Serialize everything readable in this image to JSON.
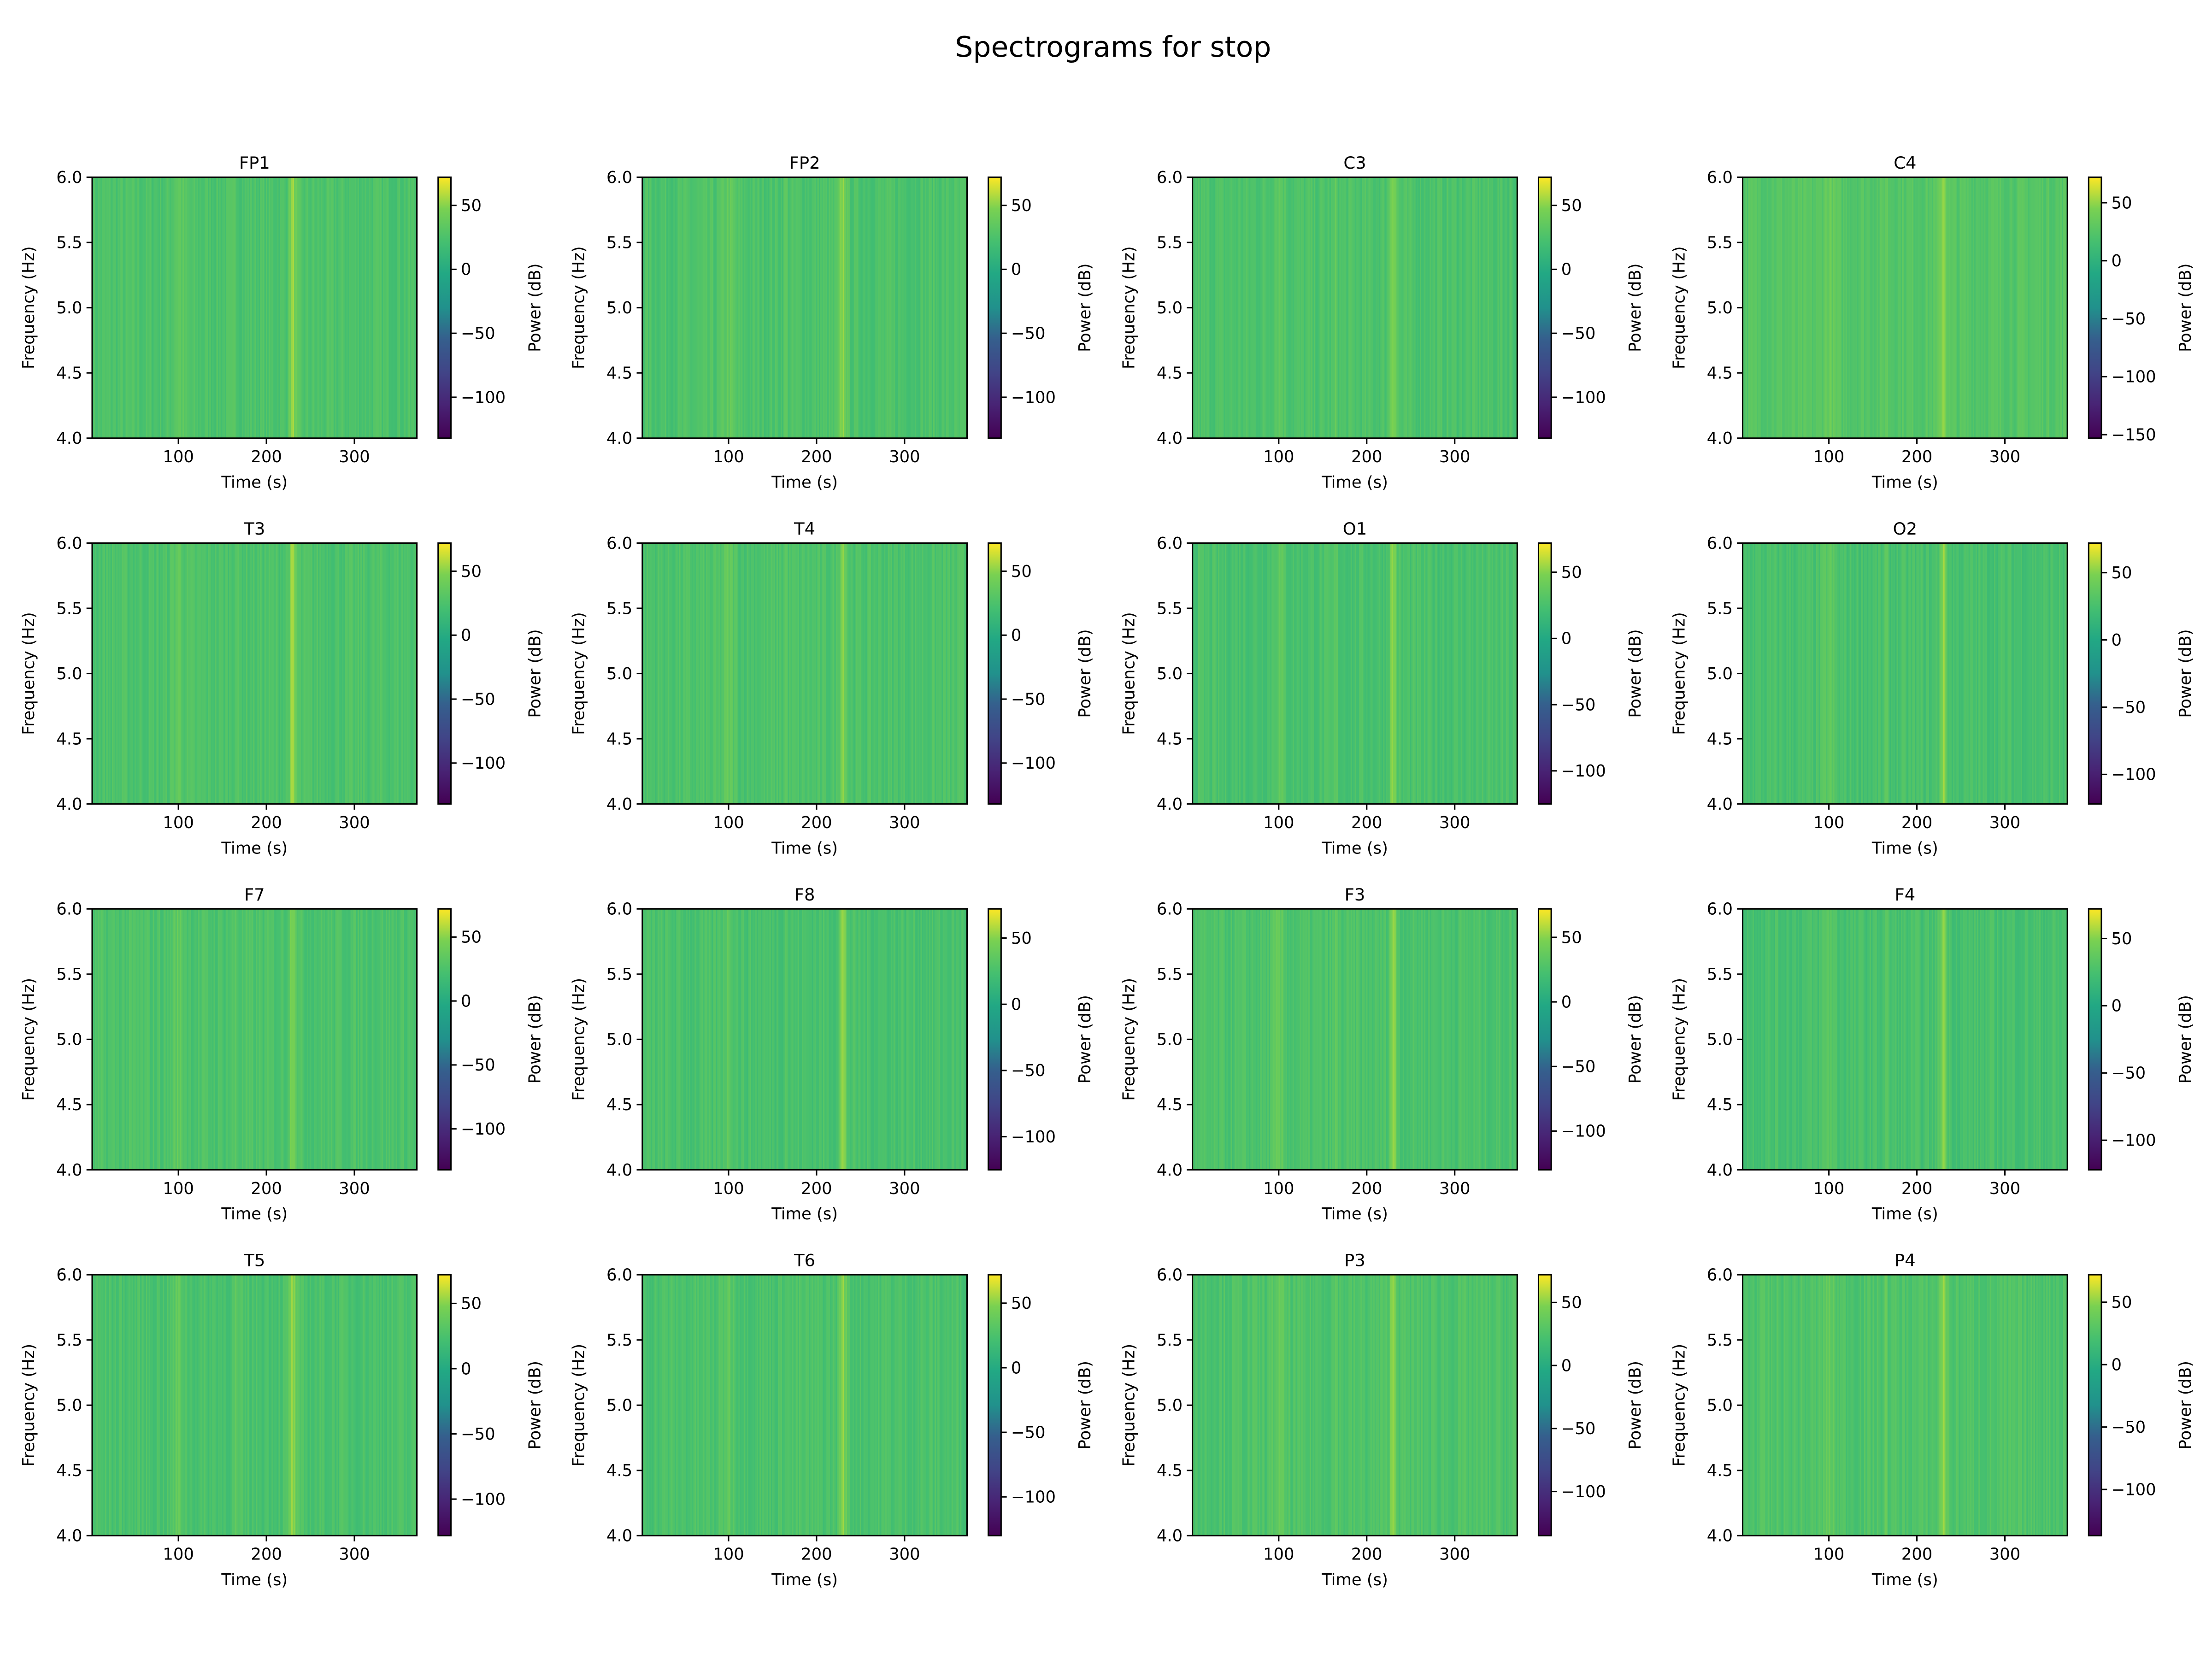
{
  "title": "Spectrograms for stop",
  "chart_data": {
    "type": "heatmap",
    "colormap": "viridis",
    "grid": false,
    "xlabel": "Time (s)",
    "ylabel": "Frequency (Hz)",
    "colorbar_label": "Power (dB)",
    "xlim": [
      2,
      371
    ],
    "ylim": [
      4.0,
      6.0
    ],
    "xticks": [
      100,
      200,
      300
    ],
    "yticks": [
      "4.0",
      "4.5",
      "5.0",
      "5.5",
      "6.0"
    ],
    "highlight_times": [
      100,
      165,
      230
    ],
    "panels": [
      {
        "channel": "FP1",
        "clim": [
          -132,
          72
        ],
        "cticks": [
          50,
          0,
          -50,
          -100
        ]
      },
      {
        "channel": "FP2",
        "clim": [
          -132,
          72
        ],
        "cticks": [
          50,
          0,
          -50,
          -100
        ]
      },
      {
        "channel": "C3",
        "clim": [
          -132,
          72
        ],
        "cticks": [
          50,
          0,
          -50,
          -100
        ]
      },
      {
        "channel": "C4",
        "clim": [
          -153,
          72
        ],
        "cticks": [
          50,
          0,
          -50,
          -100,
          -150
        ]
      },
      {
        "channel": "T3",
        "clim": [
          -132,
          72
        ],
        "cticks": [
          50,
          0,
          -50,
          -100
        ]
      },
      {
        "channel": "T4",
        "clim": [
          -132,
          72
        ],
        "cticks": [
          50,
          0,
          -50,
          -100
        ]
      },
      {
        "channel": "O1",
        "clim": [
          -125,
          72
        ],
        "cticks": [
          50,
          0,
          -50,
          -100
        ]
      },
      {
        "channel": "O2",
        "clim": [
          -122,
          72
        ],
        "cticks": [
          50,
          0,
          -50,
          -100
        ]
      },
      {
        "channel": "F7",
        "clim": [
          -132,
          72
        ],
        "cticks": [
          50,
          0,
          -50,
          -100
        ]
      },
      {
        "channel": "F8",
        "clim": [
          -125,
          72
        ],
        "cticks": [
          50,
          0,
          -50,
          -100
        ]
      },
      {
        "channel": "F3",
        "clim": [
          -130,
          72
        ],
        "cticks": [
          50,
          0,
          -50,
          -100
        ]
      },
      {
        "channel": "F4",
        "clim": [
          -122,
          72
        ],
        "cticks": [
          50,
          0,
          -50,
          -100
        ]
      },
      {
        "channel": "T5",
        "clim": [
          -128,
          72
        ],
        "cticks": [
          50,
          0,
          -50,
          -100
        ]
      },
      {
        "channel": "T6",
        "clim": [
          -130,
          72
        ],
        "cticks": [
          50,
          0,
          -50,
          -100
        ]
      },
      {
        "channel": "P3",
        "clim": [
          -135,
          72
        ],
        "cticks": [
          50,
          0,
          -50,
          -100
        ]
      },
      {
        "channel": "P4",
        "clim": [
          -137,
          72
        ],
        "cticks": [
          50,
          0,
          -50,
          -100
        ]
      }
    ]
  }
}
